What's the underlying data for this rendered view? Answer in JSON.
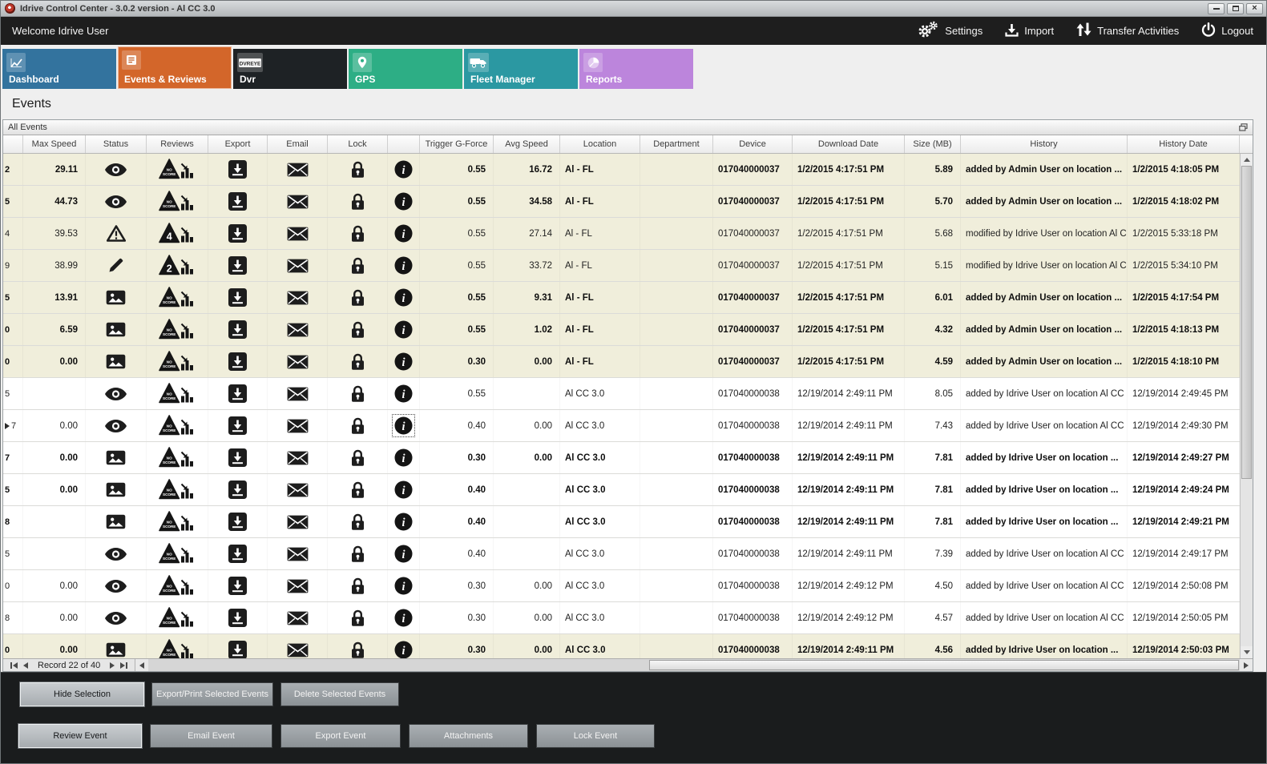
{
  "window": {
    "title": "Idrive Control Center - 3.0.2 version - Al CC 3.0"
  },
  "menubar": {
    "welcome": "Welcome Idrive User",
    "actions": [
      {
        "id": "settings",
        "label": "Settings",
        "icon": "gears-icon"
      },
      {
        "id": "import",
        "label": "Import",
        "icon": "import-icon"
      },
      {
        "id": "transfer",
        "label": "Transfer Activities",
        "icon": "transfer-arrows-icon"
      },
      {
        "id": "logout",
        "label": "Logout",
        "icon": "power-icon"
      }
    ]
  },
  "tabs": [
    {
      "label": "Dashboard",
      "color": "#33739e",
      "icon": "line-chart-icon",
      "active": false
    },
    {
      "label": "Events & Reviews",
      "color": "#d3662a",
      "icon": "events-list-icon",
      "active": true
    },
    {
      "label": "Dvr",
      "color": "#1e2225",
      "icon": "dvr-logo-icon",
      "active": false
    },
    {
      "label": "GPS",
      "color": "#2dae85",
      "icon": "map-pin-icon",
      "active": false
    },
    {
      "label": "Fleet Manager",
      "color": "#2b98a2",
      "icon": "truck-icon",
      "active": false
    },
    {
      "label": "Reports",
      "color": "#bc85dc",
      "icon": "pie-chart-icon",
      "active": false
    }
  ],
  "page": {
    "title": "Events"
  },
  "panel": {
    "title": "All Events"
  },
  "table": {
    "headers": [
      "Max Speed",
      "Status",
      "Reviews",
      "Export",
      "Email",
      "Lock",
      "",
      "Trigger G-Force",
      "Avg Speed",
      "Location",
      "Department",
      "Device",
      "Download Date",
      "Size (MB)",
      "History",
      "History Date"
    ],
    "highlight_color": "#f0eedb",
    "rows": [
      {
        "id_frag": "2",
        "max_speed": "29.11",
        "status": "eye",
        "review": "NO SCORE",
        "trigger": "0.55",
        "avg_speed": "16.72",
        "location": "Al - FL",
        "department": "",
        "device": "017040000037",
        "download_date": "1/2/2015 4:17:51 PM",
        "size_mb": "5.89",
        "history": "added by Admin User on location ...",
        "history_date": "1/2/2015 4:18:05 PM",
        "bold": true,
        "highlight": true,
        "current": false
      },
      {
        "id_frag": "5",
        "max_speed": "44.73",
        "status": "eye",
        "review": "NO SCORE",
        "trigger": "0.55",
        "avg_speed": "34.58",
        "location": "Al - FL",
        "department": "",
        "device": "017040000037",
        "download_date": "1/2/2015 4:17:51 PM",
        "size_mb": "5.70",
        "history": "added by Admin User on location ...",
        "history_date": "1/2/2015 4:18:02 PM",
        "bold": true,
        "highlight": true,
        "current": false
      },
      {
        "id_frag": "4",
        "max_speed": "39.53",
        "status": "warning",
        "review": "4",
        "trigger": "0.55",
        "avg_speed": "27.14",
        "location": "Al - FL",
        "department": "",
        "device": "017040000037",
        "download_date": "1/2/2015 4:17:51 PM",
        "size_mb": "5.68",
        "history": "modified by Idrive User on location Al C...",
        "history_date": "1/2/2015 5:33:18 PM",
        "bold": false,
        "highlight": true,
        "current": false
      },
      {
        "id_frag": "9",
        "max_speed": "38.99",
        "status": "pencil",
        "review": "2",
        "trigger": "0.55",
        "avg_speed": "33.72",
        "location": "Al - FL",
        "department": "",
        "device": "017040000037",
        "download_date": "1/2/2015 4:17:51 PM",
        "size_mb": "5.15",
        "history": "modified by Idrive User on location Al C...",
        "history_date": "1/2/2015 5:34:10 PM",
        "bold": false,
        "highlight": true,
        "current": false
      },
      {
        "id_frag": "5",
        "max_speed": "13.91",
        "status": "image",
        "review": "NO SCORE",
        "trigger": "0.55",
        "avg_speed": "9.31",
        "location": "Al - FL",
        "department": "",
        "device": "017040000037",
        "download_date": "1/2/2015 4:17:51 PM",
        "size_mb": "6.01",
        "history": "added by Admin User on location ...",
        "history_date": "1/2/2015 4:17:54 PM",
        "bold": true,
        "highlight": true,
        "current": false
      },
      {
        "id_frag": "0",
        "max_speed": "6.59",
        "status": "image",
        "review": "NO SCORE",
        "trigger": "0.55",
        "avg_speed": "1.02",
        "location": "Al - FL",
        "department": "",
        "device": "017040000037",
        "download_date": "1/2/2015 4:17:51 PM",
        "size_mb": "4.32",
        "history": "added by Admin User on location ...",
        "history_date": "1/2/2015 4:18:13 PM",
        "bold": true,
        "highlight": true,
        "current": false
      },
      {
        "id_frag": "0",
        "max_speed": "0.00",
        "status": "image",
        "review": "NO SCORE",
        "trigger": "0.30",
        "avg_speed": "0.00",
        "location": "Al - FL",
        "department": "",
        "device": "017040000037",
        "download_date": "1/2/2015 4:17:51 PM",
        "size_mb": "4.59",
        "history": "added by Admin User on location ...",
        "history_date": "1/2/2015 4:18:10 PM",
        "bold": true,
        "highlight": true,
        "current": false
      },
      {
        "id_frag": "5",
        "max_speed": "",
        "status": "eye",
        "review": "NO SCORE",
        "trigger": "0.55",
        "avg_speed": "",
        "location": "Al CC 3.0",
        "department": "",
        "device": "017040000038",
        "download_date": "12/19/2014 2:49:11 PM",
        "size_mb": "8.05",
        "history": "added by Idrive User on location Al CC ...",
        "history_date": "12/19/2014 2:49:45 PM",
        "bold": false,
        "highlight": false,
        "current": false
      },
      {
        "id_frag": "7",
        "max_speed": "0.00",
        "status": "eye",
        "review": "NO SCORE",
        "trigger": "0.40",
        "avg_speed": "0.00",
        "location": "Al CC 3.0",
        "department": "",
        "device": "017040000038",
        "download_date": "12/19/2014 2:49:11 PM",
        "size_mb": "7.43",
        "history": "added by Idrive User on location Al CC ...",
        "history_date": "12/19/2014 2:49:30 PM",
        "bold": false,
        "highlight": false,
        "current": true
      },
      {
        "id_frag": "7",
        "max_speed": "0.00",
        "status": "image",
        "review": "NO SCORE",
        "trigger": "0.30",
        "avg_speed": "0.00",
        "location": "Al CC 3.0",
        "department": "",
        "device": "017040000038",
        "download_date": "12/19/2014 2:49:11 PM",
        "size_mb": "7.81",
        "history": "added by Idrive User on location ...",
        "history_date": "12/19/2014 2:49:27 PM",
        "bold": true,
        "highlight": false,
        "current": false
      },
      {
        "id_frag": "5",
        "max_speed": "0.00",
        "status": "image",
        "review": "NO SCORE",
        "trigger": "0.40",
        "avg_speed": "",
        "location": "Al CC 3.0",
        "department": "",
        "device": "017040000038",
        "download_date": "12/19/2014 2:49:11 PM",
        "size_mb": "7.81",
        "history": "added by Idrive User on location ...",
        "history_date": "12/19/2014 2:49:24 PM",
        "bold": true,
        "highlight": false,
        "current": false
      },
      {
        "id_frag": "8",
        "max_speed": "",
        "status": "image",
        "review": "NO SCORE",
        "trigger": "0.40",
        "avg_speed": "",
        "location": "Al CC 3.0",
        "department": "",
        "device": "017040000038",
        "download_date": "12/19/2014 2:49:11 PM",
        "size_mb": "7.81",
        "history": "added by Idrive User on location ...",
        "history_date": "12/19/2014 2:49:21 PM",
        "bold": true,
        "highlight": false,
        "current": false
      },
      {
        "id_frag": "5",
        "max_speed": "",
        "status": "eye",
        "review": "NO SCORE",
        "trigger": "0.40",
        "avg_speed": "",
        "location": "Al CC 3.0",
        "department": "",
        "device": "017040000038",
        "download_date": "12/19/2014 2:49:11 PM",
        "size_mb": "7.39",
        "history": "added by Idrive User on location Al CC ...",
        "history_date": "12/19/2014 2:49:17 PM",
        "bold": false,
        "highlight": false,
        "current": false
      },
      {
        "id_frag": "0",
        "max_speed": "0.00",
        "status": "eye",
        "review": "NO SCORE",
        "trigger": "0.30",
        "avg_speed": "0.00",
        "location": "Al CC 3.0",
        "department": "",
        "device": "017040000038",
        "download_date": "12/19/2014 2:49:12 PM",
        "size_mb": "4.50",
        "history": "added by Idrive User on location Al CC ...",
        "history_date": "12/19/2014 2:50:08 PM",
        "bold": false,
        "highlight": false,
        "current": false
      },
      {
        "id_frag": "8",
        "max_speed": "0.00",
        "status": "eye",
        "review": "NO SCORE",
        "trigger": "0.30",
        "avg_speed": "0.00",
        "location": "Al CC 3.0",
        "department": "",
        "device": "017040000038",
        "download_date": "12/19/2014 2:49:12 PM",
        "size_mb": "4.57",
        "history": "added by Idrive User on location Al CC ...",
        "history_date": "12/19/2014 2:50:05 PM",
        "bold": false,
        "highlight": false,
        "current": false
      },
      {
        "id_frag": "0",
        "max_speed": "0.00",
        "status": "image",
        "review": "NO SCORE",
        "trigger": "0.30",
        "avg_speed": "0.00",
        "location": "Al CC 3.0",
        "department": "",
        "device": "017040000038",
        "download_date": "12/19/2014 2:49:11 PM",
        "size_mb": "4.56",
        "history": "added by Idrive User on location ...",
        "history_date": "12/19/2014 2:50:03 PM",
        "bold": true,
        "highlight": true,
        "current": false
      }
    ]
  },
  "pager": {
    "record_label": "Record 22 of 40"
  },
  "footer": {
    "row1": [
      "Hide Selection",
      "Export/Print Selected Events",
      "Delete Selected  Events"
    ],
    "row2": [
      "Review Event",
      "Email Event",
      "Export Event",
      "Attachments",
      "Lock Event"
    ]
  }
}
